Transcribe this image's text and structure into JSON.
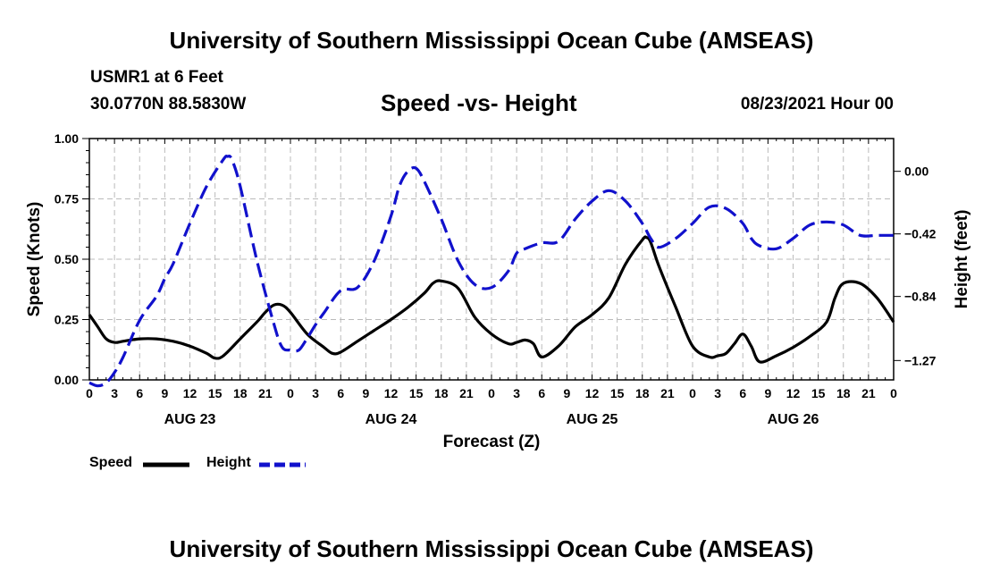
{
  "header": {
    "title": "University of Southern Mississippi Ocean Cube (AMSEAS)",
    "station": "USMR1 at 6 Feet",
    "coordinates": "30.0770N  88.5830W",
    "chart_title": "Speed -vs- Height",
    "run_time": "08/23/2021 Hour 00"
  },
  "footer": {
    "title": "University of Southern Mississippi Ocean Cube (AMSEAS)"
  },
  "legend": {
    "speed_label": "Speed",
    "height_label": "Height"
  },
  "colors": {
    "speed": "#000000",
    "height": "#1111cc",
    "grid": "#bbbbbb"
  },
  "chart_data": {
    "type": "line",
    "title": "Speed -vs- Height",
    "xlabel": "Forecast (Z)",
    "ylabel": "Speed (Knots)",
    "y2label": "Height (feet)",
    "xlim": [
      0,
      96
    ],
    "ylim": [
      0,
      1
    ],
    "y2lim": [
      -1.4,
      0.22
    ],
    "x_tick_labels": [
      "0",
      "3",
      "6",
      "9",
      "12",
      "15",
      "18",
      "21",
      "0",
      "3",
      "6",
      "9",
      "12",
      "15",
      "18",
      "21",
      "0",
      "3",
      "6",
      "9",
      "12",
      "15",
      "18",
      "21",
      "0",
      "3",
      "6",
      "9",
      "12",
      "15",
      "18",
      "21",
      "0"
    ],
    "y_ticks": [
      0,
      0.25,
      0.5,
      0.75,
      1.0
    ],
    "y_tick_labels": [
      "0.00",
      "0.25",
      "0.50",
      "0.75",
      "1.00"
    ],
    "y2_ticks": [
      -1.27,
      -0.84,
      -0.42,
      0.0
    ],
    "y2_tick_labels": [
      "−1.27",
      "−0.84",
      "−0.42",
      "0.00"
    ],
    "day_labels": [
      {
        "x": 12,
        "label": "AUG 23"
      },
      {
        "x": 36,
        "label": "AUG 24"
      },
      {
        "x": 60,
        "label": "AUG 25"
      },
      {
        "x": 84,
        "label": "AUG 26"
      }
    ],
    "grid": true,
    "legend_position": "bottom-left",
    "series": [
      {
        "name": "Speed",
        "axis": "left",
        "style": "solid",
        "x": [
          0,
          1,
          2,
          3,
          4,
          6,
          8,
          10,
          12,
          14,
          15,
          16,
          18,
          20,
          21,
          22,
          23,
          24,
          26,
          28,
          29,
          30,
          32,
          34,
          36,
          38,
          40,
          41,
          42,
          44,
          46,
          48,
          50,
          51,
          52,
          53,
          54,
          56,
          58,
          60,
          62,
          64,
          66,
          66.5,
          67,
          68,
          70,
          72,
          74,
          75,
          76,
          77,
          78,
          79,
          80,
          82,
          84,
          86,
          88,
          89,
          90,
          92,
          94,
          96
        ],
        "values": [
          0.27,
          0.22,
          0.17,
          0.155,
          0.16,
          0.17,
          0.17,
          0.16,
          0.14,
          0.11,
          0.09,
          0.1,
          0.17,
          0.24,
          0.28,
          0.31,
          0.31,
          0.28,
          0.19,
          0.135,
          0.11,
          0.115,
          0.16,
          0.205,
          0.25,
          0.3,
          0.36,
          0.4,
          0.41,
          0.38,
          0.26,
          0.19,
          0.15,
          0.155,
          0.165,
          0.15,
          0.095,
          0.14,
          0.22,
          0.27,
          0.34,
          0.48,
          0.58,
          0.59,
          0.57,
          0.47,
          0.3,
          0.14,
          0.095,
          0.1,
          0.11,
          0.15,
          0.19,
          0.14,
          0.075,
          0.1,
          0.135,
          0.18,
          0.24,
          0.34,
          0.4,
          0.4,
          0.34,
          0.24
        ]
      },
      {
        "name": "Height",
        "axis": "right",
        "style": "dashed",
        "x": [
          0,
          1,
          2,
          3,
          4,
          6,
          8,
          9,
          10,
          12,
          14,
          16,
          16.5,
          17,
          18,
          20,
          22,
          23,
          24,
          25,
          26,
          27,
          28,
          30,
          32,
          34,
          36,
          37,
          38,
          39,
          40,
          42,
          44,
          46,
          48,
          50,
          51,
          52,
          54,
          56,
          58,
          60,
          62,
          64,
          66,
          67,
          68,
          70,
          72,
          74,
          76,
          78,
          79,
          80,
          82,
          84,
          86,
          88,
          90,
          92,
          94,
          96
        ],
        "values": [
          -1.42,
          -1.44,
          -1.42,
          -1.35,
          -1.25,
          -1.0,
          -0.84,
          -0.72,
          -0.62,
          -0.35,
          -0.1,
          0.08,
          0.1,
          0.08,
          -0.1,
          -0.6,
          -1.02,
          -1.18,
          -1.2,
          -1.2,
          -1.12,
          -1.03,
          -0.95,
          -0.8,
          -0.78,
          -0.6,
          -0.3,
          -0.1,
          0.0,
          0.02,
          -0.07,
          -0.32,
          -0.6,
          -0.76,
          -0.78,
          -0.67,
          -0.55,
          -0.52,
          -0.48,
          -0.47,
          -0.32,
          -0.2,
          -0.13,
          -0.2,
          -0.35,
          -0.45,
          -0.51,
          -0.45,
          -0.35,
          -0.24,
          -0.25,
          -0.35,
          -0.45,
          -0.5,
          -0.52,
          -0.45,
          -0.36,
          -0.34,
          -0.36,
          -0.43,
          -0.43,
          -0.43
        ]
      }
    ]
  }
}
